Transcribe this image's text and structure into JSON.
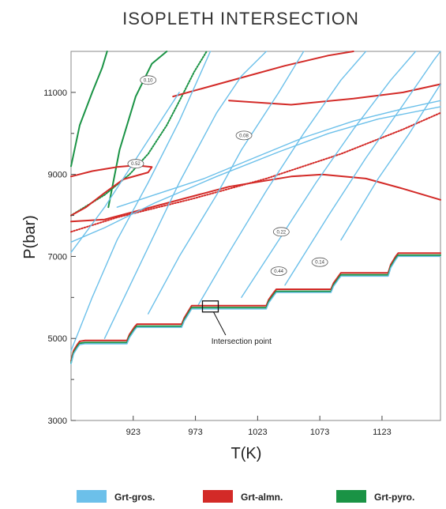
{
  "chart_data": {
    "type": "line",
    "title": "ISOPLETH  INTERSECTION",
    "xlabel": "T(K)",
    "ylabel": "P(bar)",
    "xlim": [
      873,
      1170
    ],
    "ylim": [
      3000,
      12000
    ],
    "xticks": [
      923,
      973,
      1023,
      1073,
      1123
    ],
    "yticks": [
      3000,
      5000,
      7000,
      9000,
      11000
    ],
    "grid": false,
    "legend_position": "bottom",
    "colors": {
      "Grt-gros.": "#6cc0ea",
      "Grt-alm.": "#d32a27",
      "Grt-pyro.": "#1a9345"
    },
    "legend": [
      {
        "label": "Grt-gros.",
        "color": "#6cc0ea"
      },
      {
        "label": "Grt-almn.",
        "color": "#d32a27"
      },
      {
        "label": "Grt-pyro.",
        "color": "#1a9345"
      }
    ],
    "isopleth_labels": [
      {
        "text": "0.10",
        "series": "Grt-pyro.",
        "x": 935,
        "y": 11300
      },
      {
        "text": "0.08",
        "series": "Grt-gros.",
        "x": 1012,
        "y": 9950
      },
      {
        "text": "0.52",
        "series": "Grt-almn.",
        "x": 925,
        "y": 9260
      },
      {
        "text": "0.22",
        "series": "Grt-gros.",
        "x": 1042,
        "y": 7600
      },
      {
        "text": "0.14",
        "series": "Grt-almn.",
        "x": 1073,
        "y": 6860
      },
      {
        "text": "0.44",
        "series": "Grt-almn.",
        "x": 1040,
        "y": 6640
      }
    ],
    "annotations": [
      {
        "text": "Intersection point",
        "x": 985,
        "y": 5780,
        "label_x": 1010,
        "label_y": 4870
      }
    ],
    "series": [
      {
        "name": "Grt-pyro.",
        "color": "#1a9345",
        "dash": "dotted",
        "x": [
          873,
          900,
          920,
          935,
          950,
          962,
          972,
          982
        ],
        "y": [
          8000,
          8500,
          9000,
          9500,
          10200,
          10900,
          11500,
          12000
        ]
      },
      {
        "name": "Grt-pyro.",
        "color": "#1a9345",
        "x": [
          903,
          912,
          925,
          938,
          950
        ],
        "y": [
          8200,
          9600,
          10900,
          11700,
          12000
        ]
      },
      {
        "name": "Grt-pyro.",
        "color": "#1a9345",
        "x": [
          873,
          880,
          890,
          898,
          902
        ],
        "y": [
          9200,
          10200,
          11000,
          11600,
          12000
        ]
      },
      {
        "name": "Grt-almn.",
        "color": "#d32a27",
        "x": [
          873,
          890,
          910,
          925,
          938,
          935,
          915,
          900,
          885,
          873
        ],
        "y": [
          8950,
          9080,
          9180,
          9220,
          9180,
          9050,
          8880,
          8550,
          8200,
          8000
        ]
      },
      {
        "name": "Grt-almn.",
        "color": "#d32a27",
        "x": [
          873,
          900,
          950,
          1000,
          1050,
          1075,
          1110,
          1140,
          1170
        ],
        "y": [
          7850,
          7900,
          8300,
          8700,
          8950,
          9000,
          8900,
          8650,
          8380
        ]
      },
      {
        "name": "Grt-almn.",
        "color": "#d32a27",
        "dash": "dotted",
        "x": [
          873,
          910,
          970,
          1030,
          1090,
          1140,
          1170
        ],
        "y": [
          7600,
          7950,
          8400,
          8900,
          9500,
          10100,
          10500
        ]
      },
      {
        "name": "Grt-almn.",
        "color": "#d32a27",
        "x": [
          955,
          985,
          1015,
          1045,
          1080,
          1100
        ],
        "y": [
          10900,
          11150,
          11400,
          11650,
          11900,
          12000
        ]
      },
      {
        "name": "Grt-almn.",
        "color": "#d32a27",
        "x": [
          1000,
          1050,
          1100,
          1140,
          1170
        ],
        "y": [
          10800,
          10700,
          10850,
          11000,
          11200
        ]
      },
      {
        "name": "Grt-gros.",
        "color": "#6cc0ea",
        "x": [
          873,
          900,
          940,
          990,
          1040,
          1080,
          1120,
          1170
        ],
        "y": [
          7350,
          7700,
          8300,
          8950,
          9550,
          10000,
          10350,
          10650
        ]
      },
      {
        "name": "Grt-gros.",
        "color": "#6cc0ea",
        "x": [
          873,
          890,
          910,
          935,
          960,
          985
        ],
        "y": [
          4700,
          6000,
          7400,
          8800,
          10300,
          12000
        ]
      },
      {
        "name": "Grt-gros.",
        "color": "#6cc0ea",
        "x": [
          900,
          930,
          960,
          990,
          1010,
          1030
        ],
        "y": [
          5000,
          6900,
          8800,
          10500,
          11400,
          12000
        ]
      },
      {
        "name": "Grt-gros.",
        "color": "#6cc0ea",
        "x": [
          935,
          960,
          990,
          1010,
          1040,
          1060
        ],
        "y": [
          5600,
          7000,
          8500,
          9600,
          11000,
          12000
        ]
      },
      {
        "name": "Grt-gros.",
        "color": "#6cc0ea",
        "x": [
          975,
          1000,
          1030,
          1060,
          1090,
          1110
        ],
        "y": [
          5800,
          7100,
          8600,
          10000,
          11300,
          12000
        ]
      },
      {
        "name": "Grt-gros.",
        "color": "#6cc0ea",
        "x": [
          1010,
          1040,
          1070,
          1100,
          1130,
          1150
        ],
        "y": [
          6000,
          7400,
          8800,
          10100,
          11300,
          12000
        ]
      },
      {
        "name": "Grt-gros.",
        "color": "#6cc0ea",
        "x": [
          1045,
          1080,
          1110,
          1140,
          1165,
          1170
        ],
        "y": [
          6300,
          8000,
          9400,
          10700,
          11800,
          12000
        ]
      },
      {
        "name": "Grt-gros.",
        "color": "#6cc0ea",
        "x": [
          1090,
          1120,
          1145,
          1170
        ],
        "y": [
          7400,
          8900,
          10000,
          11200
        ]
      },
      {
        "name": "Grt-gros.",
        "color": "#6cc0ea",
        "x": [
          873,
          900,
          930,
          960
        ],
        "y": [
          7100,
          8200,
          9600,
          11000
        ]
      },
      {
        "name": "Grt-gros.",
        "color": "#6cc0ea",
        "x": [
          910,
          940,
          980,
          1020,
          1060,
          1100,
          1140,
          1170
        ],
        "y": [
          8200,
          8500,
          8900,
          9400,
          9900,
          10300,
          10600,
          10800
        ]
      },
      {
        "name": "Grt-almn.",
        "color": "#d32a27",
        "x": [
          873,
          875,
          878,
          880,
          884,
          918,
          920,
          924,
          926,
          962,
          964,
          968,
          970,
          1030,
          1032,
          1036,
          1038,
          1082,
          1084,
          1088,
          1090,
          1128,
          1130,
          1134,
          1136,
          1170
        ],
        "y": [
          4450,
          4700,
          4850,
          4930,
          4950,
          4950,
          5100,
          5280,
          5350,
          5350,
          5500,
          5700,
          5800,
          5800,
          5950,
          6120,
          6200,
          6200,
          6350,
          6520,
          6600,
          6600,
          6800,
          7000,
          7080,
          7080
        ]
      },
      {
        "name": "Grt-pyro.",
        "color": "#1a9345",
        "x": [
          873,
          875,
          878,
          880,
          884,
          918,
          920,
          924,
          926,
          962,
          964,
          968,
          970,
          1030,
          1032,
          1036,
          1038,
          1082,
          1084,
          1088,
          1090,
          1128,
          1130,
          1134,
          1136,
          1170
        ],
        "y": [
          4400,
          4650,
          4800,
          4880,
          4900,
          4900,
          5050,
          5230,
          5300,
          5300,
          5450,
          5650,
          5750,
          5750,
          5900,
          6070,
          6150,
          6150,
          6300,
          6470,
          6550,
          6550,
          6750,
          6950,
          7030,
          7030
        ]
      },
      {
        "name": "Grt-gros.",
        "color": "#6cc0ea",
        "x": [
          873,
          875,
          878,
          880,
          884,
          918,
          920,
          924,
          926,
          962,
          964,
          968,
          970,
          1030,
          1032,
          1036,
          1038,
          1082,
          1084,
          1088,
          1090,
          1128,
          1130,
          1134,
          1136,
          1170
        ],
        "y": [
          4380,
          4620,
          4770,
          4850,
          4870,
          4870,
          5020,
          5200,
          5270,
          5270,
          5420,
          5620,
          5720,
          5720,
          5870,
          6040,
          6120,
          6120,
          6270,
          6440,
          6520,
          6520,
          6720,
          6920,
          7000,
          7000
        ]
      }
    ]
  }
}
